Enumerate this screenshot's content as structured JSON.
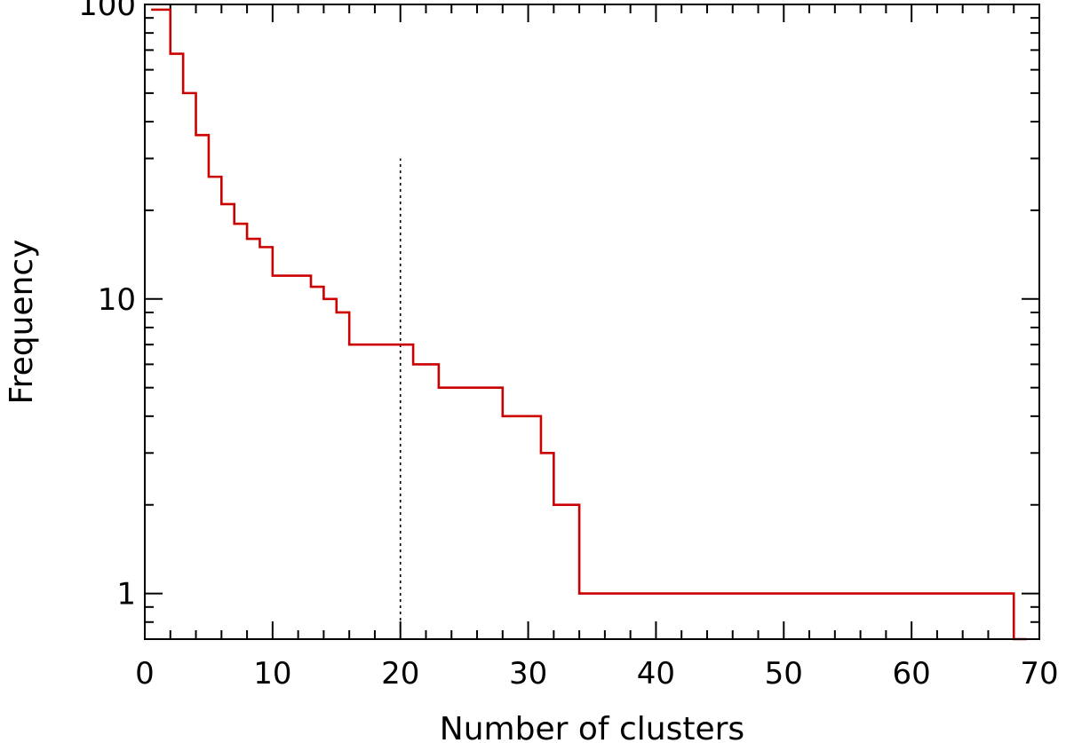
{
  "chart_data": {
    "type": "line",
    "style": "step",
    "title": "",
    "xlabel": "Number of clusters",
    "ylabel": "Frequency",
    "xlim": [
      0,
      70
    ],
    "ylim": [
      0.7,
      100
    ],
    "yscale": "log",
    "grid": false,
    "line_color": "#cc0000",
    "x_ticks": [
      "0",
      "10",
      "20",
      "30",
      "40",
      "50",
      "60",
      "70"
    ],
    "y_ticks": [
      "1",
      "10",
      "100"
    ],
    "series": [
      {
        "x": [
          0.5,
          2,
          3,
          4,
          5,
          6,
          7,
          8,
          9,
          10,
          13,
          14,
          15,
          16,
          21,
          23,
          28,
          31,
          32,
          34,
          68,
          69
        ],
        "y": [
          96,
          68,
          50,
          36,
          26,
          21,
          18,
          16,
          15,
          12,
          11,
          10,
          9,
          7,
          6,
          5,
          4,
          3,
          2,
          1,
          0.7,
          0.7
        ]
      }
    ],
    "annotations": [
      {
        "type": "vline",
        "x": 20,
        "y_top": 30,
        "style": "dotted"
      }
    ]
  }
}
